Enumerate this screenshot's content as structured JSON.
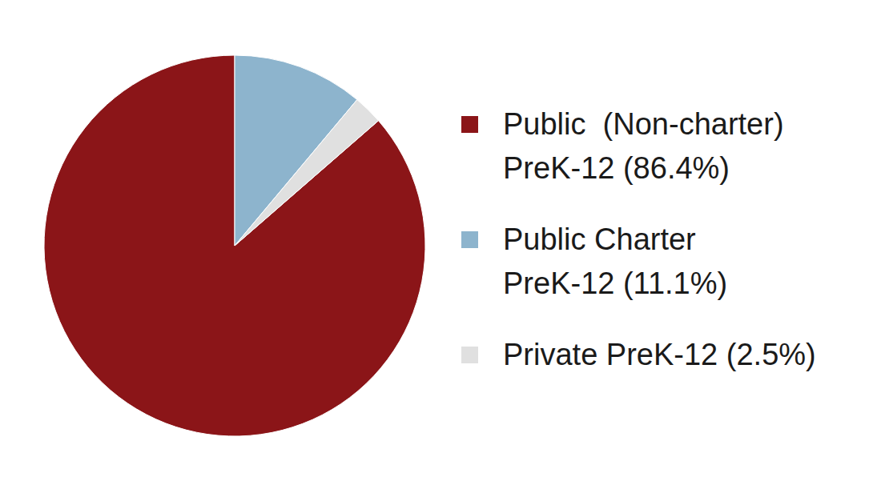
{
  "chart_data": {
    "type": "pie",
    "categories": [
      "Public  (Non-charter)\nPreK-12 (86.4%)",
      "Public Charter\nPreK-12 (11.1%)",
      "Private PreK-12 (2.5%)"
    ],
    "values": [
      86.4,
      11.1,
      2.5
    ],
    "colors": [
      "#8b1518",
      "#8db4cd",
      "#e0e0e0"
    ],
    "legend": "right"
  }
}
